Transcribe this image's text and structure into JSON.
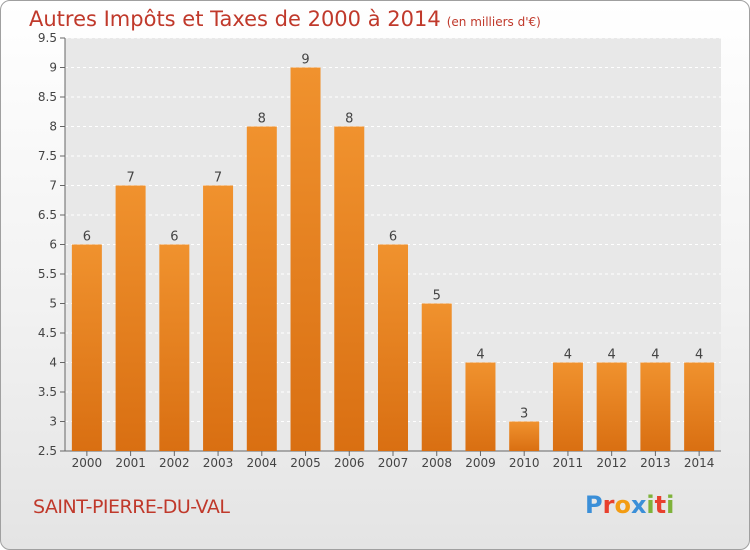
{
  "header": {
    "title": "Autres Impôts et Taxes de 2000 à 2014",
    "subtitle": "(en milliers d'€)"
  },
  "footer": {
    "commune": "SAINT-PIERRE-DU-VAL",
    "logo": [
      "P",
      "r",
      "o",
      "x",
      "i",
      "t",
      "i"
    ],
    "logo_colors": [
      "#3b8fd8",
      "#e8402e",
      "#f39c12",
      "#3b8fd8",
      "#7fb23a",
      "#e8402e",
      "#7fb23a"
    ]
  },
  "chart_data": {
    "type": "bar",
    "categories": [
      "2000",
      "2001",
      "2002",
      "2003",
      "2004",
      "2005",
      "2006",
      "2007",
      "2008",
      "2009",
      "2010",
      "2011",
      "2012",
      "2013",
      "2014"
    ],
    "values": [
      6,
      7,
      6,
      7,
      8,
      9,
      8,
      6,
      5,
      4,
      3,
      4,
      4,
      4,
      4
    ],
    "labels": [
      "6",
      "7",
      "6",
      "7",
      "8",
      "9",
      "8",
      "6",
      "5",
      "4",
      "3",
      "4",
      "4",
      "4",
      "4"
    ],
    "yticks": [
      "2.5",
      "3",
      "3.5",
      "4",
      "4.5",
      "5",
      "5.5",
      "6",
      "6.5",
      "7",
      "7.5",
      "8",
      "8.5",
      "9",
      "9.5"
    ],
    "ylim": [
      2.5,
      9.5
    ],
    "grid": true,
    "bar_color": "#f0922e",
    "bar_color_dark": "#d96f12",
    "title_color": "#c0392b"
  }
}
